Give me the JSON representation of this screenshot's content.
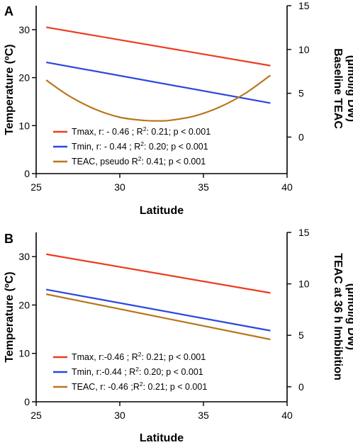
{
  "chart_data": [
    {
      "panel": "A",
      "type": "line",
      "xlabel": "Latitude",
      "ylabel_left": "Temperature (ºC)",
      "ylabel_right_line1": "Baseline TEAC",
      "ylabel_right_line2": "(μmol/g DW)",
      "xlim": [
        25,
        40
      ],
      "xticks": [
        25,
        30,
        35,
        40
      ],
      "ylim_left": [
        0,
        35
      ],
      "yticks_left": [
        0,
        10,
        20,
        30
      ],
      "ylim_right": [
        -4.17,
        15
      ],
      "yticks_right": [
        0,
        5,
        10,
        15
      ],
      "series": [
        {
          "label": "Tmax, r: - 0.46 ; R²: 0.21; p < 0.001",
          "color": "#ee3b1f",
          "axis": "left",
          "x": [
            25.6,
            39
          ],
          "y": [
            30.5,
            22.5
          ]
        },
        {
          "label": "Tmin, r: - 0.44 ; R²: 0.20; p < 0.001",
          "color": "#2c46e0",
          "axis": "left",
          "x": [
            25.6,
            39
          ],
          "y": [
            23.2,
            14.7
          ]
        },
        {
          "label": "TEAC, pseudo R²: 0.41; p < 0.001",
          "color": "#b8771d",
          "axis": "right",
          "x": [
            25.6,
            27,
            28.5,
            30,
            31.5,
            32.3,
            33,
            34.5,
            36,
            37.5,
            39
          ],
          "y": [
            6.5,
            4.66,
            3.2,
            2.26,
            1.89,
            1.85,
            1.91,
            2.42,
            3.45,
            4.99,
            7.05
          ]
        }
      ]
    },
    {
      "panel": "B",
      "type": "line",
      "xlabel": "Latitude",
      "ylabel_left": "Temperature (ºC)",
      "ylabel_right_line1": "TEAC at 36 h Imbibition",
      "ylabel_right_line2": "(μmol/g DW)",
      "xlim": [
        25,
        40
      ],
      "xticks": [
        25,
        30,
        35,
        40
      ],
      "ylim_left": [
        0,
        35
      ],
      "yticks_left": [
        0,
        10,
        20,
        30
      ],
      "ylim_right": [
        -1.46,
        15
      ],
      "yticks_right": [
        0,
        5,
        10,
        15
      ],
      "series": [
        {
          "label": "Tmax, r:-0.46 ; R²: 0.21; p < 0.001",
          "color": "#ee3b1f",
          "axis": "left",
          "x": [
            25.6,
            39
          ],
          "y": [
            30.5,
            22.5
          ]
        },
        {
          "label": "Tmin, r:-0.44 ; R²: 0.20; p < 0.001",
          "color": "#2c46e0",
          "axis": "left",
          "x": [
            25.6,
            39
          ],
          "y": [
            23.2,
            14.7
          ]
        },
        {
          "label": "TEAC, r: -0.46 ;R²: 0.21; p < 0.001",
          "color": "#b8771d",
          "axis": "right",
          "x": [
            25.6,
            39
          ],
          "y": [
            9.0,
            4.6
          ]
        }
      ]
    }
  ]
}
